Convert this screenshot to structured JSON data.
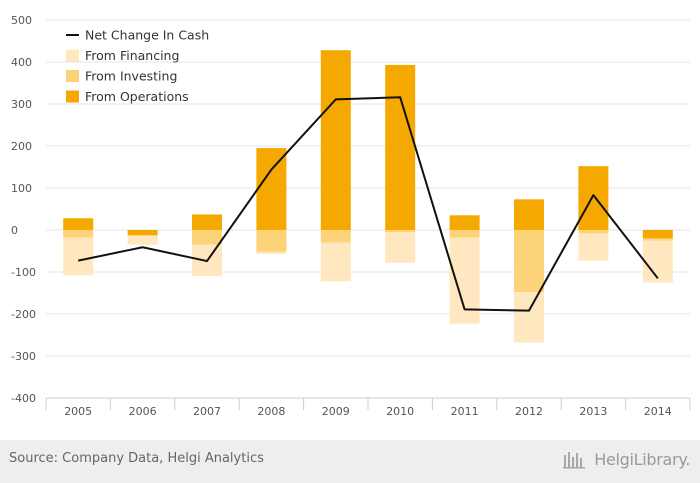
{
  "chart_data": {
    "type": "bar",
    "title": "",
    "xlabel": "",
    "ylabel": "",
    "categories": [
      "2005",
      "2006",
      "2007",
      "2008",
      "2009",
      "2010",
      "2011",
      "2012",
      "2013",
      "2014"
    ],
    "ylim": [
      -400,
      500
    ],
    "yticks": [
      -400,
      -300,
      -200,
      -100,
      0,
      100,
      200,
      300,
      400,
      500
    ],
    "grid": true,
    "legend_position": "top-left",
    "series": [
      {
        "name": "From Operations",
        "type": "bar",
        "color": "#f5a800",
        "values": [
          28,
          -12,
          37,
          195,
          428,
          393,
          35,
          73,
          152,
          -20
        ]
      },
      {
        "name": "From Investing",
        "type": "bar",
        "color": "#fdd37a",
        "values": [
          -18,
          -3,
          -35,
          -52,
          -30,
          -5,
          -18,
          -148,
          -8,
          -5
        ]
      },
      {
        "name": "From Financing",
        "type": "bar",
        "color": "#ffe8bf",
        "values": [
          -90,
          -20,
          -75,
          -5,
          -92,
          -73,
          -205,
          -120,
          -65,
          -100
        ]
      },
      {
        "name": "Net Change In Cash",
        "type": "line",
        "color": "#111111",
        "values": [
          -73,
          -41,
          -74,
          144,
          311,
          316,
          -189,
          -192,
          83,
          -115
        ]
      }
    ],
    "legend_order": [
      "Net Change In Cash",
      "From Financing",
      "From Investing",
      "From Operations"
    ]
  },
  "footer": {
    "source": "Source: Company Data, Helgi Analytics",
    "brand": "HelgiLibrary."
  }
}
